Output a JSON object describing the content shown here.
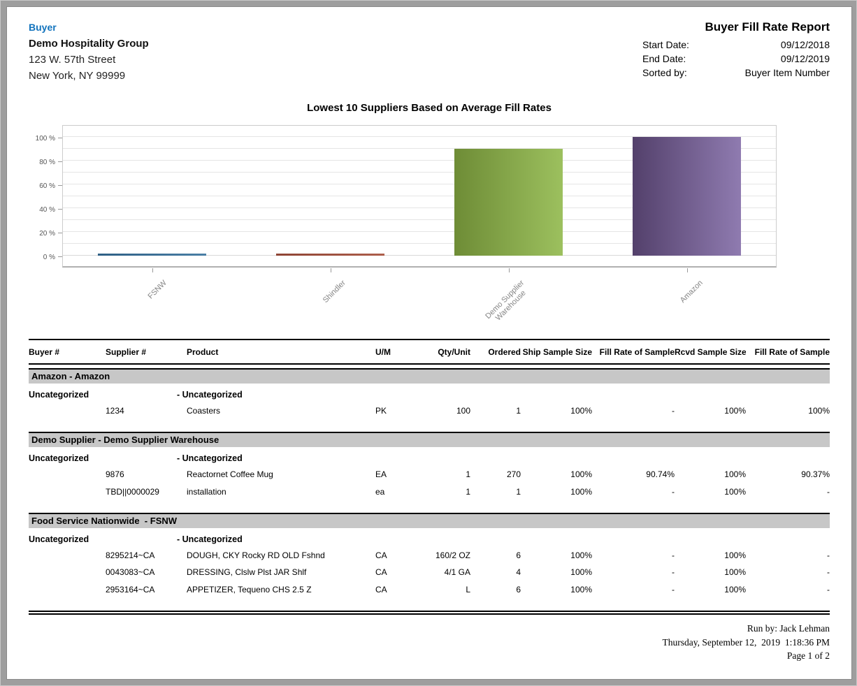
{
  "header": {
    "buyer_label": "Buyer",
    "company": "Demo Hospitality Group",
    "address_line1": "123 W. 57th Street",
    "address_line2": "New York, NY 99999",
    "report_title": "Buyer Fill Rate Report",
    "meta": [
      {
        "label": "Start Date:",
        "value": "09/12/2018"
      },
      {
        "label": "End Date:",
        "value": "09/12/2019"
      },
      {
        "label": "Sorted by:",
        "value": "Buyer Item Number"
      }
    ]
  },
  "chart_data": {
    "type": "bar",
    "title": "Lowest 10 Suppliers Based on Average Fill Rates",
    "categories": [
      "FSNW",
      "Shindler",
      "Demo Supplier\nWarehouse",
      "Amazon"
    ],
    "values": [
      0,
      0,
      90,
      100
    ],
    "unit": "%",
    "yticks": [
      0,
      20,
      40,
      60,
      80,
      100
    ],
    "ytick_suffix": " %",
    "ylim": [
      0,
      110
    ],
    "grid": "horizontal minor lines every 10%",
    "legend": "none",
    "bar_gradients": [
      [
        "#2e5f85",
        "#4a7fa5"
      ],
      [
        "#8e4434",
        "#ad5e4b"
      ],
      [
        "#6e8c36",
        "#9cc05e"
      ],
      [
        "#53406b",
        "#8f7bb0"
      ]
    ]
  },
  "table": {
    "columns": [
      "Buyer #",
      "Supplier #",
      "Product",
      "U/M",
      "Qty/Unit",
      "Ordered",
      "Ship Sample Size",
      "Fill Rate of Sample",
      "Rcvd Sample Size",
      "Fill Rate of Sample"
    ],
    "sections": [
      {
        "group_header": "Amazon - Amazon",
        "category": "Uncategorized",
        "subcategory": "- Uncategorized",
        "rows": [
          {
            "supplier_num": "1234",
            "product": "Coasters",
            "um": "PK",
            "qty_unit": "100",
            "ordered": "1",
            "ship_sample_size": "100%",
            "fill_rate_ship": "-",
            "rcvd_sample_size": "100%",
            "fill_rate_rcvd": "100%"
          }
        ]
      },
      {
        "group_header": "Demo Supplier - Demo Supplier Warehouse",
        "category": "Uncategorized",
        "subcategory": "- Uncategorized",
        "rows": [
          {
            "supplier_num": "9876",
            "product": "Reactornet Coffee Mug",
            "um": "EA",
            "qty_unit": "1",
            "ordered": "270",
            "ship_sample_size": "100%",
            "fill_rate_ship": "90.74%",
            "rcvd_sample_size": "100%",
            "fill_rate_rcvd": "90.37%"
          },
          {
            "supplier_num": "TBD||0000029",
            "product": "installation",
            "um": "ea",
            "qty_unit": "1",
            "ordered": "1",
            "ship_sample_size": "100%",
            "fill_rate_ship": "-",
            "rcvd_sample_size": "100%",
            "fill_rate_rcvd": "-"
          }
        ]
      },
      {
        "group_header": "Food Service Nationwide  - FSNW",
        "category": "Uncategorized",
        "subcategory": "- Uncategorized",
        "rows": [
          {
            "supplier_num": "8295214~CA",
            "product": "DOUGH, CKY Rocky RD OLD Fshnd",
            "um": "CA",
            "qty_unit": "160/2 OZ",
            "ordered": "6",
            "ship_sample_size": "100%",
            "fill_rate_ship": "-",
            "rcvd_sample_size": "100%",
            "fill_rate_rcvd": "-"
          },
          {
            "supplier_num": "0043083~CA",
            "product": "DRESSING, Clslw Plst JAR Shlf",
            "um": "CA",
            "qty_unit": "4/1 GA",
            "ordered": "4",
            "ship_sample_size": "100%",
            "fill_rate_ship": "-",
            "rcvd_sample_size": "100%",
            "fill_rate_rcvd": "-"
          },
          {
            "supplier_num": "2953164~CA",
            "product": "APPETIZER, Tequeno CHS 2.5 Z",
            "um": "CA",
            "qty_unit": "L",
            "ordered": "6",
            "ship_sample_size": "100%",
            "fill_rate_ship": "-",
            "rcvd_sample_size": "100%",
            "fill_rate_rcvd": "-"
          }
        ]
      }
    ]
  },
  "footer": {
    "run_by": "Run by: Jack Lehman",
    "datetime": "Thursday, September 12,  2019  1:18:36 PM",
    "page": "Page 1 of 2"
  }
}
